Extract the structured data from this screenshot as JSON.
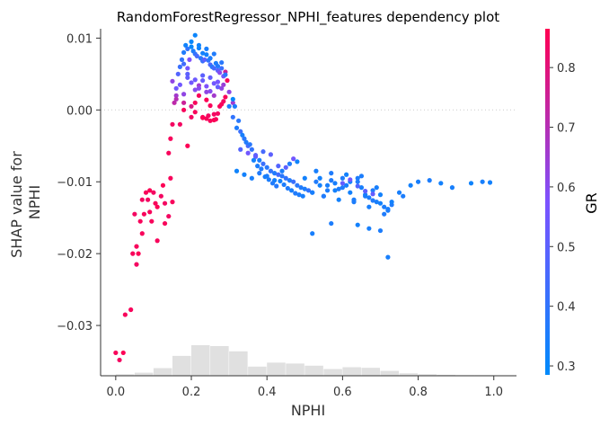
{
  "chart_data": {
    "type": "scatter",
    "title": "RandomForestRegressor_NPHI_features dependency plot",
    "xlabel": "NPHI",
    "ylabel_lines": [
      "SHAP value for",
      "NPHI"
    ],
    "colorbar_label": "GR",
    "xlim": [
      -0.04,
      1.06
    ],
    "ylim": [
      -0.037,
      0.0113
    ],
    "x_ticks": [
      0.0,
      0.2,
      0.4,
      0.6,
      0.8,
      1.0
    ],
    "x_tick_labels": [
      "0.0",
      "0.2",
      "0.4",
      "0.6",
      "0.8",
      "1.0"
    ],
    "y_ticks": [
      0.01,
      0.0,
      -0.01,
      -0.02,
      -0.03
    ],
    "y_tick_labels": [
      "0.01",
      "0.00",
      "−0.01",
      "−0.02",
      "−0.03"
    ],
    "colorbar_range": [
      0.285,
      0.865
    ],
    "colorbar_ticks": [
      0.3,
      0.4,
      0.5,
      0.6,
      0.7,
      0.8
    ],
    "colorbar_tick_labels": [
      "0.3",
      "0.4",
      "0.5",
      "0.6",
      "0.7",
      "0.8"
    ],
    "zero_line": true,
    "colors": {
      "low": "#008afb",
      "mid": "#7c52ff",
      "high": "#ff0052",
      "histogram": "#e0e0e0",
      "axis": "#333333"
    },
    "histogram": {
      "bin_edges": [
        0.0,
        0.05,
        0.1,
        0.15,
        0.2,
        0.25,
        0.3,
        0.35,
        0.4,
        0.45,
        0.5,
        0.55,
        0.6,
        0.65,
        0.7,
        0.75,
        0.8,
        0.85,
        0.9,
        0.95,
        1.0
      ],
      "relative_heights": [
        0.05,
        0.1,
        0.25,
        0.65,
        1.0,
        0.97,
        0.8,
        0.3,
        0.43,
        0.4,
        0.33,
        0.22,
        0.28,
        0.26,
        0.16,
        0.08,
        0.05,
        0.03,
        0.02,
        0.02
      ]
    },
    "series": [
      {
        "x": [
          0.0,
          0.02,
          0.01,
          0.025,
          0.04,
          0.045,
          0.05,
          0.055,
          0.06,
          0.065,
          0.07,
          0.075,
          0.08,
          0.085,
          0.09,
          0.095,
          0.1,
          0.105,
          0.11,
          0.12,
          0.125,
          0.13,
          0.14,
          0.15,
          0.055,
          0.07,
          0.09,
          0.11,
          0.13,
          0.145
        ],
        "y": [
          -0.0338,
          -0.0338,
          -0.0348,
          -0.0285,
          -0.0278,
          -0.02,
          -0.0145,
          -0.019,
          -0.02,
          -0.0155,
          -0.0125,
          -0.0145,
          -0.0115,
          -0.0125,
          -0.0112,
          -0.0155,
          -0.0115,
          -0.013,
          -0.0182,
          -0.012,
          -0.0105,
          -0.0158,
          -0.0148,
          -0.0128,
          -0.0215,
          -0.0172,
          -0.0142,
          -0.0135,
          -0.013,
          -0.0095
        ],
        "gr": [
          0.85,
          0.86,
          0.84,
          0.85,
          0.85,
          0.85,
          0.84,
          0.85,
          0.86,
          0.85,
          0.84,
          0.85,
          0.85,
          0.84,
          0.86,
          0.85,
          0.84,
          0.85,
          0.85,
          0.84,
          0.86,
          0.85,
          0.84,
          0.85,
          0.84,
          0.85,
          0.85,
          0.86,
          0.84,
          0.85
        ]
      },
      {
        "x": [
          0.14,
          0.145,
          0.15,
          0.155,
          0.16,
          0.165,
          0.17,
          0.175,
          0.18,
          0.185,
          0.19,
          0.195,
          0.2,
          0.205,
          0.21,
          0.215,
          0.22,
          0.225,
          0.23,
          0.235,
          0.24,
          0.245,
          0.25,
          0.255,
          0.26,
          0.265,
          0.27,
          0.275,
          0.28,
          0.285,
          0.29,
          0.295,
          0.3,
          0.31,
          0.2,
          0.22,
          0.24,
          0.26,
          0.28,
          0.21,
          0.23,
          0.25,
          0.27,
          0.29,
          0.18,
          0.19
        ],
        "y": [
          -0.006,
          -0.004,
          -0.002,
          0.001,
          0.003,
          0.005,
          0.006,
          0.007,
          0.008,
          0.009,
          0.0085,
          0.007,
          0.0095,
          0.0082,
          0.0078,
          0.0075,
          0.0086,
          0.0072,
          0.0068,
          0.007,
          0.0077,
          0.0069,
          0.0063,
          0.006,
          0.0058,
          0.0065,
          0.0055,
          0.0052,
          0.0058,
          0.0047,
          0.0053,
          0.0041,
          0.0025,
          0.001,
          0.0088,
          0.009,
          0.0085,
          0.0078,
          0.0066,
          0.0104,
          0.0079,
          0.0072,
          0.0061,
          0.0049,
          0.0064,
          0.0058
        ],
        "gr": [
          0.85,
          0.85,
          0.84,
          0.72,
          0.55,
          0.48,
          0.42,
          0.4,
          0.36,
          0.32,
          0.4,
          0.58,
          0.3,
          0.35,
          0.4,
          0.45,
          0.32,
          0.38,
          0.42,
          0.5,
          0.33,
          0.4,
          0.46,
          0.38,
          0.45,
          0.35,
          0.5,
          0.6,
          0.42,
          0.55,
          0.75,
          0.85,
          0.62,
          0.65,
          0.3,
          0.32,
          0.34,
          0.36,
          0.38,
          0.31,
          0.33,
          0.35,
          0.37,
          0.39,
          0.44,
          0.56
        ]
      },
      {
        "x": [
          0.15,
          0.16,
          0.17,
          0.18,
          0.19,
          0.2,
          0.21,
          0.22,
          0.23,
          0.24,
          0.25,
          0.26,
          0.27,
          0.28,
          0.16,
          0.18,
          0.2,
          0.22,
          0.24,
          0.26,
          0.19,
          0.21,
          0.23,
          0.25,
          0.27,
          0.285
        ],
        "y": [
          0.004,
          0.002,
          0.0035,
          0.0022,
          0.0045,
          0.0038,
          0.0028,
          0.0034,
          0.0041,
          0.0033,
          0.0026,
          0.0037,
          0.0032,
          0.003,
          0.0015,
          0.001,
          0.0005,
          0.003,
          0.0025,
          0.002,
          0.005,
          0.0042,
          0.0048,
          0.0045,
          0.0039,
          0.0035
        ],
        "gr": [
          0.62,
          0.66,
          0.55,
          0.62,
          0.52,
          0.55,
          0.6,
          0.65,
          0.53,
          0.58,
          0.6,
          0.55,
          0.52,
          0.62,
          0.7,
          0.75,
          0.78,
          0.6,
          0.62,
          0.66,
          0.5,
          0.54,
          0.5,
          0.52,
          0.56,
          0.64
        ]
      },
      {
        "x": [
          0.17,
          0.18,
          0.19,
          0.2,
          0.21,
          0.22,
          0.23,
          0.24,
          0.245,
          0.25,
          0.26,
          0.265,
          0.27,
          0.275,
          0.28,
          0.285,
          0.29,
          0.24,
          0.25,
          0.26,
          0.21,
          0.23
        ],
        "y": [
          -0.002,
          0.0,
          -0.005,
          -0.001,
          0.001,
          0.002,
          -0.001,
          -0.0012,
          -0.0008,
          -0.0015,
          -0.0014,
          -0.0013,
          -0.0005,
          0.0005,
          0.0008,
          0.0012,
          0.0018,
          0.0014,
          0.0006,
          -0.0006,
          -0.0003,
          -0.0011
        ],
        "gr": [
          0.84,
          0.85,
          0.86,
          0.84,
          0.85,
          0.85,
          0.86,
          0.85,
          0.84,
          0.85,
          0.86,
          0.85,
          0.84,
          0.85,
          0.85,
          0.84,
          0.85,
          0.86,
          0.85,
          0.84,
          0.85,
          0.86
        ]
      },
      {
        "x": [
          0.3,
          0.31,
          0.32,
          0.33,
          0.34,
          0.35,
          0.36,
          0.37,
          0.38,
          0.39,
          0.4,
          0.41,
          0.42,
          0.43,
          0.44,
          0.45,
          0.46,
          0.47,
          0.48,
          0.49,
          0.5,
          0.51,
          0.52,
          0.32,
          0.34,
          0.36,
          0.38,
          0.4,
          0.42,
          0.44,
          0.46,
          0.48,
          0.5,
          0.33,
          0.35,
          0.37,
          0.39,
          0.41,
          0.43,
          0.45,
          0.47,
          0.31,
          0.315,
          0.325,
          0.335,
          0.345,
          0.355,
          0.365,
          0.375,
          0.385,
          0.395,
          0.405,
          0.415,
          0.425,
          0.435,
          0.445,
          0.455,
          0.465,
          0.475,
          0.485,
          0.495
        ],
        "y": [
          0.0005,
          -0.001,
          -0.0025,
          -0.003,
          -0.004,
          -0.005,
          -0.0055,
          -0.0063,
          -0.007,
          -0.0075,
          -0.008,
          -0.0085,
          -0.0088,
          -0.009,
          -0.0092,
          -0.0095,
          -0.0098,
          -0.01,
          -0.0105,
          -0.0108,
          -0.011,
          -0.0112,
          -0.0115,
          -0.0085,
          -0.009,
          -0.0095,
          -0.0088,
          -0.0092,
          -0.0098,
          -0.0085,
          -0.0075,
          -0.0072,
          -0.0095,
          -0.0055,
          -0.006,
          -0.0065,
          -0.0058,
          -0.0062,
          -0.0078,
          -0.008,
          -0.0068,
          0.0015,
          0.0005,
          -0.0015,
          -0.0035,
          -0.0045,
          -0.0048,
          -0.007,
          -0.0078,
          -0.0082,
          -0.0093,
          -0.0097,
          -0.0102,
          -0.0106,
          -0.0099,
          -0.0104,
          -0.0109,
          -0.0112,
          -0.0116,
          -0.0118,
          -0.012
        ],
        "gr": [
          0.35,
          0.4,
          0.36,
          0.42,
          0.38,
          0.45,
          0.4,
          0.5,
          0.35,
          0.42,
          0.38,
          0.4,
          0.36,
          0.44,
          0.38,
          0.4,
          0.36,
          0.42,
          0.38,
          0.36,
          0.35,
          0.4,
          0.38,
          0.32,
          0.33,
          0.34,
          0.36,
          0.35,
          0.33,
          0.34,
          0.36,
          0.32,
          0.33,
          0.48,
          0.55,
          0.52,
          0.45,
          0.5,
          0.48,
          0.5,
          0.55,
          0.3,
          0.35,
          0.38,
          0.34,
          0.36,
          0.38,
          0.33,
          0.35,
          0.36,
          0.34,
          0.35,
          0.36,
          0.37,
          0.33,
          0.35,
          0.36,
          0.34,
          0.36,
          0.35,
          0.34
        ]
      },
      {
        "x": [
          0.52,
          0.53,
          0.54,
          0.55,
          0.56,
          0.57,
          0.58,
          0.59,
          0.6,
          0.61,
          0.62,
          0.63,
          0.64,
          0.65,
          0.66,
          0.67,
          0.68,
          0.69,
          0.7,
          0.71,
          0.72,
          0.73,
          0.54,
          0.56,
          0.58,
          0.6,
          0.62,
          0.64,
          0.66,
          0.68,
          0.7,
          0.72,
          0.53,
          0.57,
          0.61,
          0.65,
          0.69,
          0.55,
          0.59,
          0.63,
          0.67,
          0.71,
          0.73,
          0.75,
          0.76,
          0.78,
          0.8,
          0.83,
          0.86,
          0.89,
          0.94,
          0.97,
          0.99,
          0.6,
          0.62,
          0.64,
          0.66,
          0.68
        ],
        "y": [
          -0.0115,
          -0.01,
          -0.0095,
          -0.012,
          -0.0105,
          -0.0098,
          -0.0112,
          -0.011,
          -0.0095,
          -0.0105,
          -0.0115,
          -0.0125,
          -0.01,
          -0.0108,
          -0.0118,
          -0.0122,
          -0.0112,
          -0.0128,
          -0.013,
          -0.0135,
          -0.0138,
          -0.0132,
          -0.0105,
          -0.0112,
          -0.0102,
          -0.0108,
          -0.01,
          -0.0095,
          -0.012,
          -0.0126,
          -0.0118,
          -0.014,
          -0.0085,
          -0.0088,
          -0.009,
          -0.0092,
          -0.0108,
          -0.012,
          -0.0125,
          -0.0128,
          -0.0135,
          -0.0145,
          -0.0128,
          -0.0115,
          -0.012,
          -0.0105,
          -0.01,
          -0.0098,
          -0.0102,
          -0.0108,
          -0.0102,
          -0.01,
          -0.0101,
          -0.0102,
          -0.0097,
          -0.0106,
          -0.0113,
          -0.0117
        ],
        "gr": [
          0.34,
          0.36,
          0.33,
          0.35,
          0.34,
          0.36,
          0.33,
          0.35,
          0.36,
          0.34,
          0.33,
          0.35,
          0.36,
          0.34,
          0.33,
          0.35,
          0.36,
          0.34,
          0.33,
          0.35,
          0.34,
          0.36,
          0.33,
          0.35,
          0.34,
          0.36,
          0.33,
          0.35,
          0.34,
          0.36,
          0.33,
          0.35,
          0.34,
          0.36,
          0.33,
          0.35,
          0.34,
          0.36,
          0.33,
          0.35,
          0.34,
          0.36,
          0.33,
          0.34,
          0.35,
          0.33,
          0.34,
          0.35,
          0.33,
          0.34,
          0.32,
          0.34,
          0.33,
          0.52,
          0.55,
          0.48,
          0.5,
          0.52
        ]
      },
      {
        "x": [
          0.52,
          0.57,
          0.64,
          0.67,
          0.7,
          0.72
        ],
        "y": [
          -0.0172,
          -0.0158,
          -0.016,
          -0.0165,
          -0.0168,
          -0.0205
        ],
        "gr": [
          0.34,
          0.35,
          0.33,
          0.34,
          0.35,
          0.34
        ]
      }
    ]
  }
}
